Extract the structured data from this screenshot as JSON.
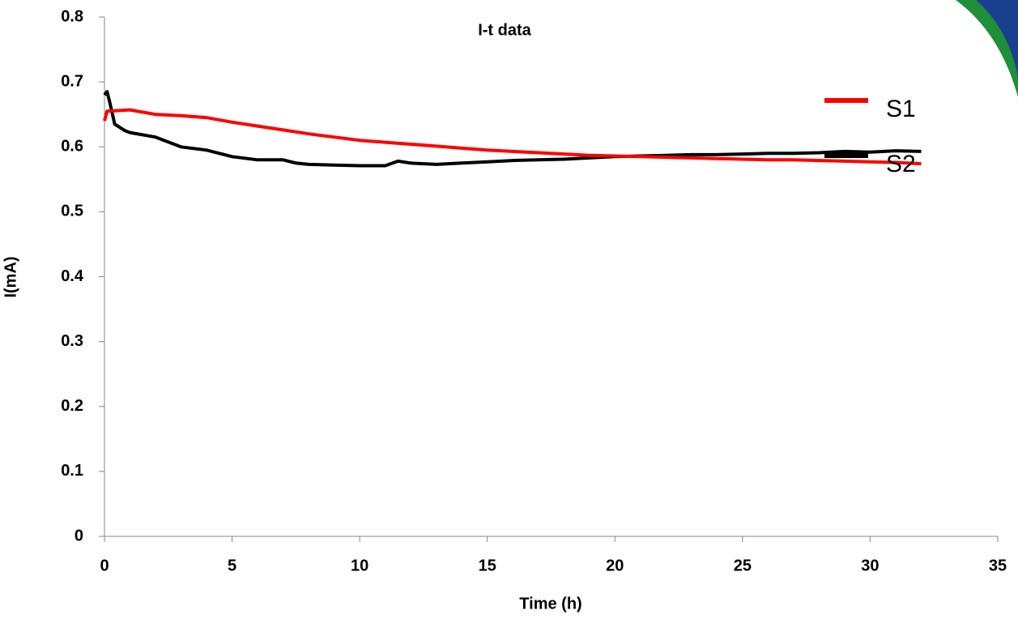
{
  "chart_data": {
    "type": "line",
    "title": "I-t data",
    "x_label": "Time (h)",
    "y_label": "I(mA)",
    "xlim": [
      0,
      35
    ],
    "xticks": [
      0,
      5,
      10,
      15,
      20,
      25,
      30,
      35
    ],
    "ylim": [
      0,
      0.8
    ],
    "yticks": [
      0,
      0.1,
      0.2,
      0.3,
      0.4,
      0.5,
      0.6,
      0.7,
      0.8
    ],
    "series": [
      {
        "name": "S1",
        "color": "#ff0000",
        "x": [
          0,
          0.1,
          1,
          2,
          3,
          4,
          5,
          6,
          7,
          8,
          9,
          10,
          11,
          12,
          13,
          14,
          15,
          16,
          17,
          18,
          19,
          20,
          21,
          22,
          23,
          24,
          25,
          26,
          27,
          28,
          29,
          30,
          31,
          32
        ],
        "values": [
          0.64,
          0.655,
          0.657,
          0.65,
          0.648,
          0.645,
          0.638,
          0.632,
          0.626,
          0.62,
          0.615,
          0.61,
          0.607,
          0.604,
          0.601,
          0.598,
          0.595,
          0.593,
          0.591,
          0.589,
          0.587,
          0.586,
          0.585,
          0.584,
          0.583,
          0.582,
          0.581,
          0.58,
          0.58,
          0.579,
          0.578,
          0.577,
          0.576,
          0.574
        ]
      },
      {
        "name": "S2",
        "color": "#000000",
        "x": [
          0,
          0.1,
          0.2,
          0.4,
          0.8,
          1,
          2,
          3,
          4,
          5,
          6,
          7,
          7.5,
          8,
          9,
          10,
          11,
          11.5,
          12,
          13,
          14,
          15,
          16,
          17,
          18,
          19,
          20,
          21,
          22,
          23,
          24,
          25,
          26,
          27,
          28,
          29,
          30,
          31,
          32
        ],
        "values": [
          0.68,
          0.685,
          0.67,
          0.635,
          0.625,
          0.622,
          0.615,
          0.6,
          0.595,
          0.585,
          0.58,
          0.58,
          0.575,
          0.573,
          0.572,
          0.571,
          0.571,
          0.578,
          0.575,
          0.573,
          0.575,
          0.577,
          0.579,
          0.58,
          0.581,
          0.583,
          0.585,
          0.586,
          0.587,
          0.588,
          0.588,
          0.589,
          0.59,
          0.59,
          0.591,
          0.593,
          0.592,
          0.594,
          0.593
        ]
      }
    ]
  }
}
